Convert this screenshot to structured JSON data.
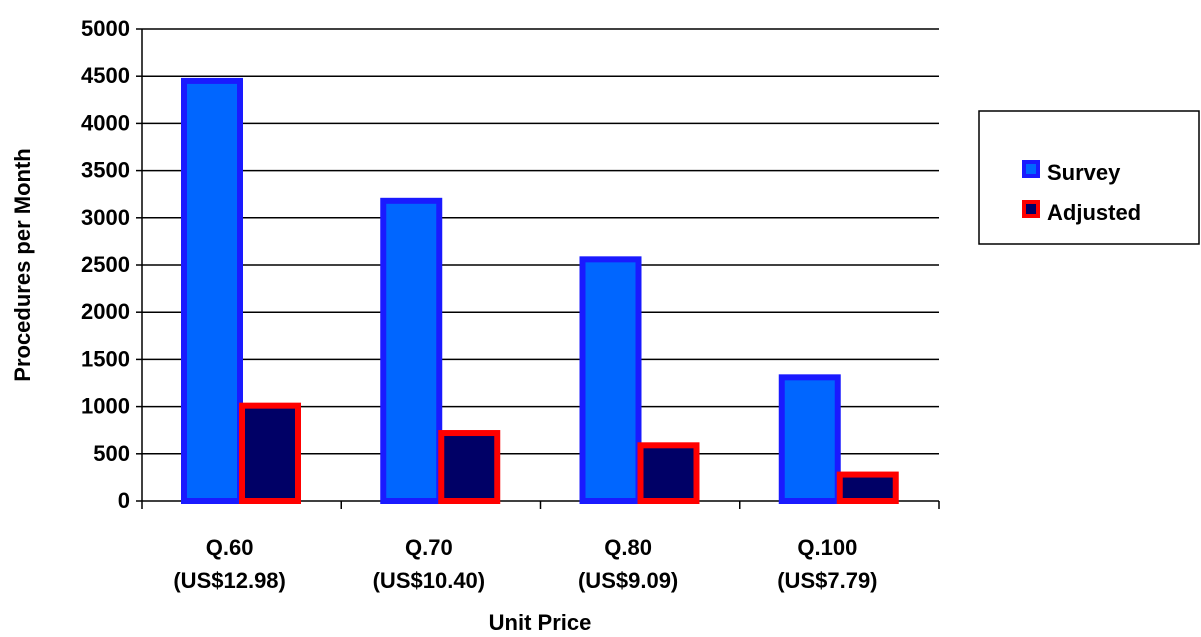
{
  "chart_data": {
    "type": "bar",
    "title": "",
    "xlabel": "Unit Price",
    "ylabel": "Procedures per Month",
    "ylim": [
      0,
      5000
    ],
    "yticks": [
      0,
      500,
      1000,
      1500,
      2000,
      2500,
      3000,
      3500,
      4000,
      4500,
      5000
    ],
    "grid": true,
    "legend_position": "right",
    "categories": [
      [
        "Q.60",
        "(US$12.98)"
      ],
      [
        "Q.70",
        "(US$10.40)"
      ],
      [
        "Q.80",
        "(US$9.09)"
      ],
      [
        "Q.100",
        "(US$7.79)"
      ]
    ],
    "series": [
      {
        "name": "Survey",
        "values": [
          4450,
          3180,
          2560,
          1310
        ],
        "fill": "#0066ff",
        "stroke": "#1a1aff"
      },
      {
        "name": "Adjusted",
        "values": [
          1010,
          720,
          590,
          280
        ],
        "fill": "#000066",
        "stroke": "#ff0000"
      }
    ]
  }
}
